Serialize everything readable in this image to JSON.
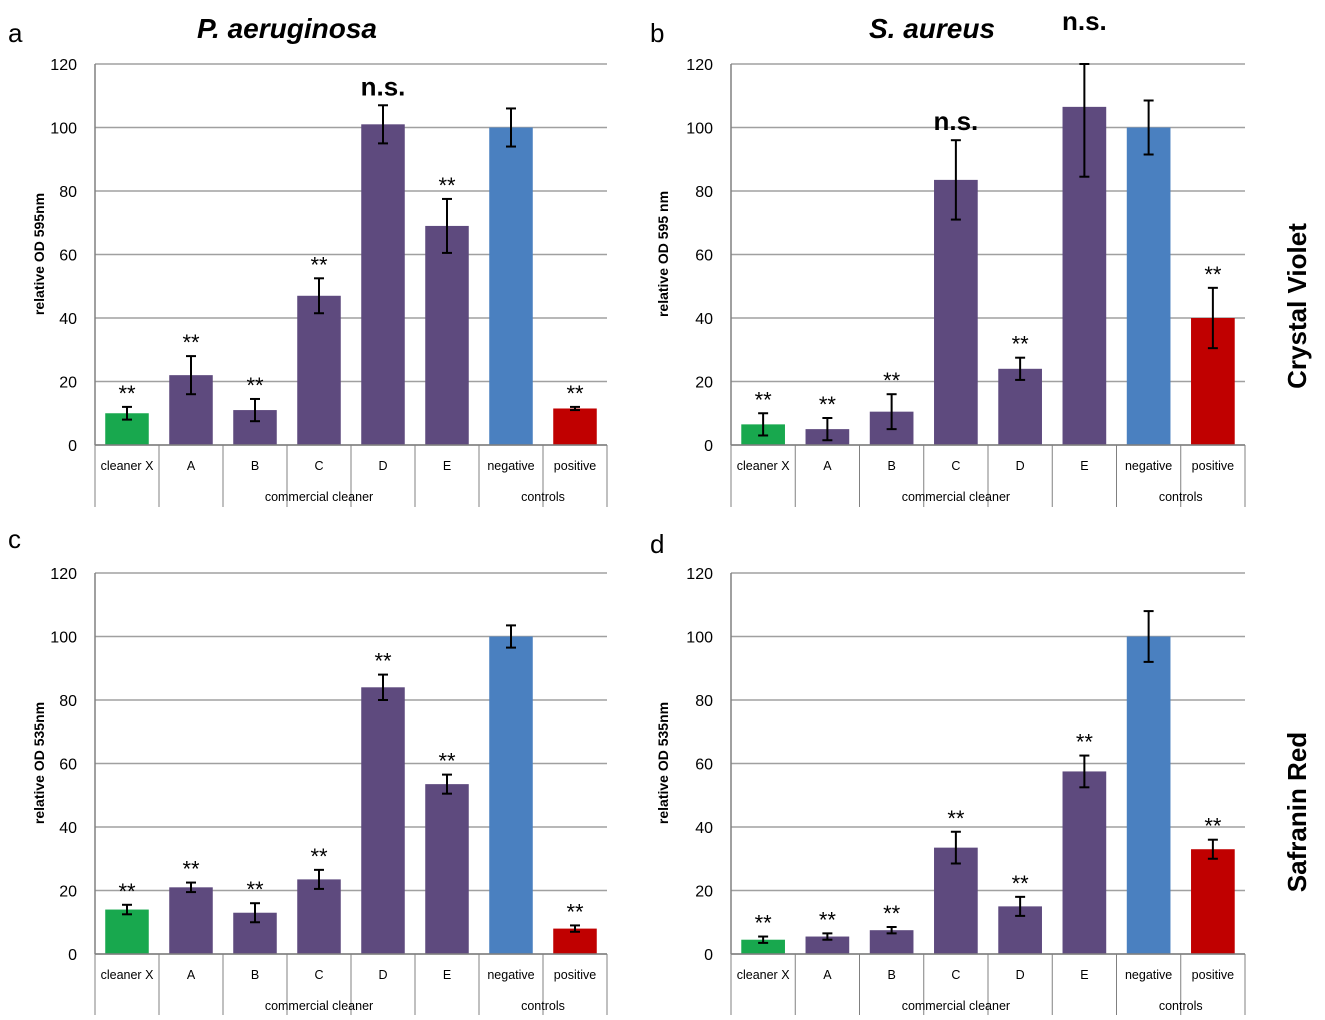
{
  "species_titles": [
    "P. aeruginosa",
    "S. aureus"
  ],
  "stain_labels": [
    "Crystal Violet",
    "Safranin Red"
  ],
  "colors": {
    "cleaner_x": "#18a84e",
    "commercial": "#5e4a7e",
    "negative": "#4a80c0",
    "positive": "#c00000",
    "grid": "#a0a0a0",
    "axis": "#808080"
  },
  "chart_data": [
    {
      "type": "bar",
      "panel": "a",
      "ylabel": "relative OD 595nm",
      "ylim": [
        0,
        120
      ],
      "yticks": [
        0,
        20,
        40,
        60,
        80,
        100,
        120
      ],
      "categories": [
        "cleaner X",
        "A",
        "B",
        "C",
        "D",
        "E",
        "negative",
        "positive"
      ],
      "groups": [
        {
          "label": "commercial cleaner",
          "span": [
            1,
            5
          ]
        },
        {
          "label": "controls",
          "span": [
            6,
            7
          ]
        }
      ],
      "values": [
        10,
        22,
        11,
        47,
        101,
        69,
        100,
        11.5
      ],
      "errors": [
        2,
        6,
        3.5,
        5.5,
        6,
        8.5,
        6,
        0.5
      ],
      "significance": [
        "**",
        "**",
        "**",
        "**",
        "n.s.",
        "**",
        "",
        "**"
      ],
      "bar_colors": [
        "cleaner_x",
        "commercial",
        "commercial",
        "commercial",
        "commercial",
        "commercial",
        "negative",
        "positive"
      ]
    },
    {
      "type": "bar",
      "panel": "b",
      "ylabel": "relative OD 595 nm",
      "ylim": [
        0,
        120
      ],
      "yticks": [
        0,
        20,
        40,
        60,
        80,
        100,
        120
      ],
      "categories": [
        "cleaner X",
        "A",
        "B",
        "C",
        "D",
        "E",
        "negative",
        "positive"
      ],
      "groups": [
        {
          "label": "commercial cleaner",
          "span": [
            1,
            5
          ]
        },
        {
          "label": "controls",
          "span": [
            6,
            7
          ]
        }
      ],
      "values": [
        6.5,
        5,
        10.5,
        83.5,
        24,
        106.5,
        100,
        40
      ],
      "errors": [
        3.5,
        3.5,
        5.5,
        12.5,
        3.5,
        22,
        8.5,
        9.5
      ],
      "significance": [
        "**",
        "**",
        "**",
        "n.s.",
        "**",
        "n.s.",
        "",
        "**"
      ],
      "bar_colors": [
        "cleaner_x",
        "commercial",
        "commercial",
        "commercial",
        "commercial",
        "commercial",
        "negative",
        "positive"
      ]
    },
    {
      "type": "bar",
      "panel": "c",
      "ylabel": "relative OD 535nm",
      "ylim": [
        0,
        120
      ],
      "yticks": [
        0,
        20,
        40,
        60,
        80,
        100,
        120
      ],
      "categories": [
        "cleaner X",
        "A",
        "B",
        "C",
        "D",
        "E",
        "negative",
        "positive"
      ],
      "groups": [
        {
          "label": "commercial cleaner",
          "span": [
            1,
            5
          ]
        },
        {
          "label": "controls",
          "span": [
            6,
            7
          ]
        }
      ],
      "values": [
        14,
        21,
        13,
        23.5,
        84,
        53.5,
        100,
        8
      ],
      "errors": [
        1.5,
        1.5,
        3,
        3,
        4,
        3,
        3.5,
        1
      ],
      "significance": [
        "**",
        "**",
        "**",
        "**",
        "**",
        "**",
        "",
        "**"
      ],
      "bar_colors": [
        "cleaner_x",
        "commercial",
        "commercial",
        "commercial",
        "commercial",
        "commercial",
        "negative",
        "positive"
      ]
    },
    {
      "type": "bar",
      "panel": "d",
      "ylabel": "relative OD 535nm",
      "ylim": [
        0,
        120
      ],
      "yticks": [
        0,
        20,
        40,
        60,
        80,
        100,
        120
      ],
      "categories": [
        "cleaner X",
        "A",
        "B",
        "C",
        "D",
        "E",
        "negative",
        "positive"
      ],
      "groups": [
        {
          "label": "commercial cleaner",
          "span": [
            1,
            5
          ]
        },
        {
          "label": "controls",
          "span": [
            6,
            7
          ]
        }
      ],
      "values": [
        4.5,
        5.5,
        7.5,
        33.5,
        15,
        57.5,
        100,
        33
      ],
      "errors": [
        1,
        1,
        1,
        5,
        3,
        5,
        8,
        3
      ],
      "significance": [
        "**",
        "**",
        "**",
        "**",
        "**",
        "**",
        "",
        "**"
      ],
      "bar_colors": [
        "cleaner_x",
        "commercial",
        "commercial",
        "commercial",
        "commercial",
        "commercial",
        "negative",
        "positive"
      ]
    }
  ]
}
